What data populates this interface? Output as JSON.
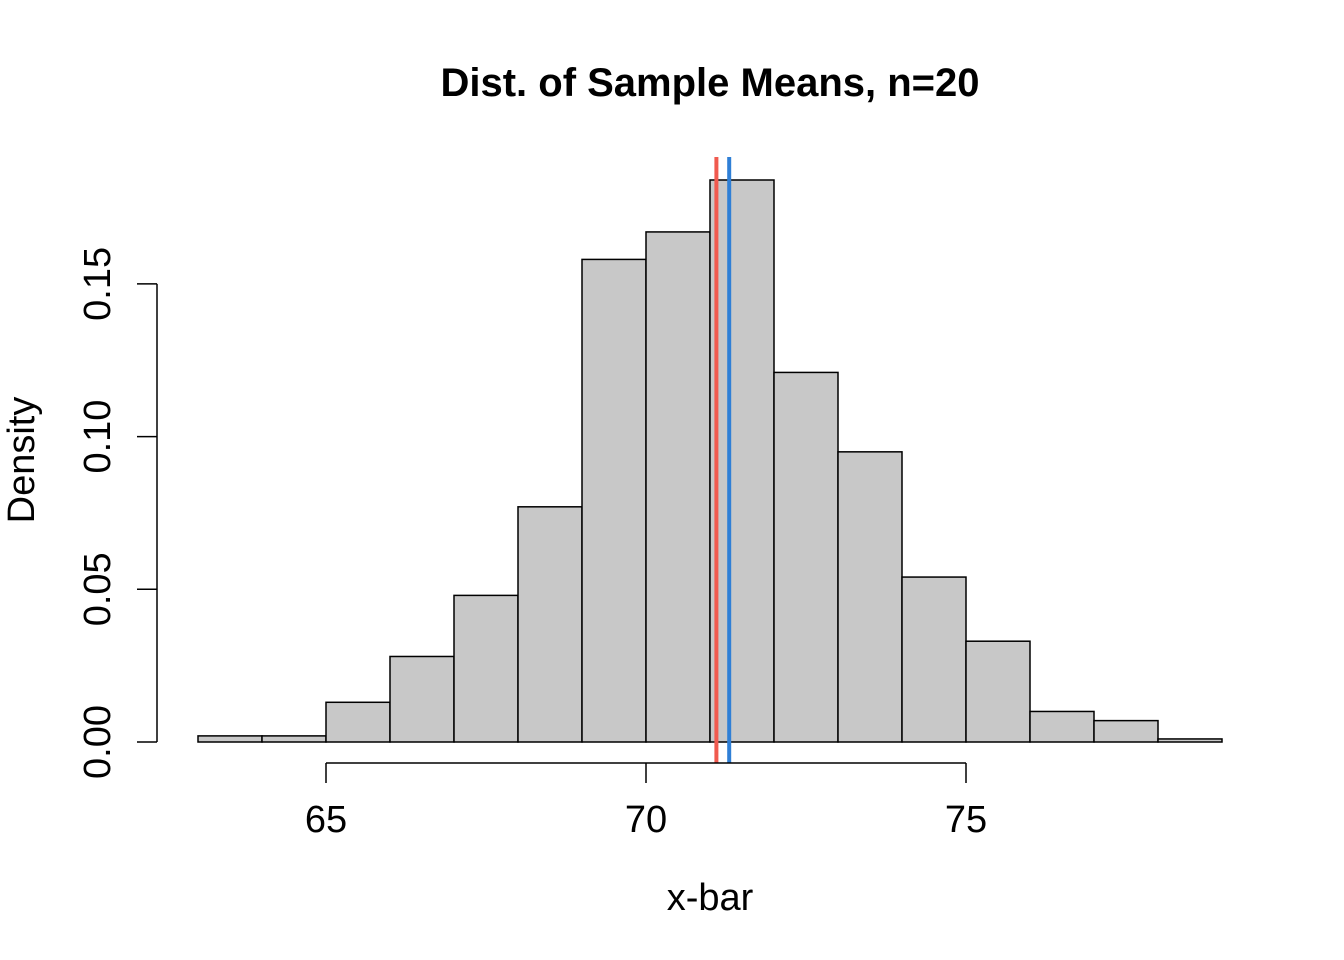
{
  "chart_data": {
    "type": "bar",
    "title": "Dist. of Sample Means, n=20",
    "xlabel": "x-bar",
    "ylabel": "Density",
    "bin_edges": [
      63,
      64,
      65,
      66,
      67,
      68,
      69,
      70,
      71,
      72,
      73,
      74,
      75,
      76,
      77,
      78,
      79
    ],
    "values": [
      0.002,
      0.002,
      0.013,
      0.028,
      0.048,
      0.077,
      0.158,
      0.167,
      0.184,
      0.121,
      0.095,
      0.054,
      0.033,
      0.01,
      0.007,
      0.001
    ],
    "xlim": [
      63,
      79
    ],
    "ylim": [
      0,
      0.19
    ],
    "x_ticks": [
      65,
      70,
      75
    ],
    "x_tick_labels": [
      "65",
      "70",
      "75"
    ],
    "y_ticks": [
      0,
      0.05,
      0.1,
      0.15
    ],
    "y_tick_labels": [
      "0.00",
      "0.05",
      "0.10",
      "0.15"
    ],
    "vlines": [
      {
        "x": 71.1,
        "color": "#f05a4f"
      },
      {
        "x": 71.3,
        "color": "#2f7fd6"
      }
    ],
    "bar_color": "#c8c8c8",
    "grid": false
  }
}
